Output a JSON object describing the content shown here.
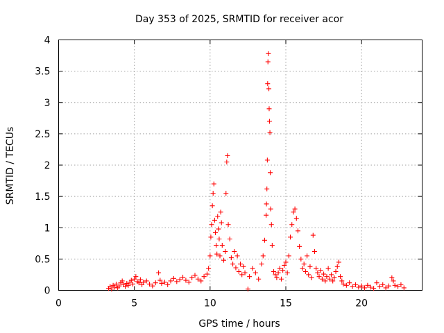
{
  "chart_data": {
    "type": "scatter",
    "title": "Day 353 of 2025, SRMTID for receiver acor",
    "xlabel": "GPS time / hours",
    "ylabel": "SRMTID / TECUs",
    "xlim": [
      0,
      24
    ],
    "ylim": [
      0,
      4
    ],
    "xticks": [
      "0",
      "5",
      "10",
      "15",
      "20"
    ],
    "yticks": [
      "0",
      "0.5",
      "1",
      "1.5",
      "2",
      "2.5",
      "3",
      "3.5",
      "4"
    ],
    "marker": "plus",
    "color": "#ff0000",
    "grid": true,
    "legend": "none",
    "series": [
      {
        "name": "SRMTID",
        "points": [
          [
            3.3,
            0.03
          ],
          [
            3.4,
            0.06
          ],
          [
            3.5,
            0.02
          ],
          [
            3.6,
            0.08
          ],
          [
            3.7,
            0.05
          ],
          [
            3.8,
            0.1
          ],
          [
            3.9,
            0.04
          ],
          [
            4.0,
            0.07
          ],
          [
            4.1,
            0.12
          ],
          [
            4.2,
            0.15
          ],
          [
            4.3,
            0.09
          ],
          [
            4.4,
            0.06
          ],
          [
            4.5,
            0.11
          ],
          [
            4.6,
            0.08
          ],
          [
            4.7,
            0.13
          ],
          [
            4.8,
            0.16
          ],
          [
            4.9,
            0.1
          ],
          [
            5.0,
            0.18
          ],
          [
            5.1,
            0.22
          ],
          [
            5.2,
            0.14
          ],
          [
            5.3,
            0.12
          ],
          [
            5.4,
            0.17
          ],
          [
            5.5,
            0.09
          ],
          [
            5.6,
            0.13
          ],
          [
            5.8,
            0.15
          ],
          [
            6.0,
            0.1
          ],
          [
            6.2,
            0.07
          ],
          [
            6.4,
            0.12
          ],
          [
            6.6,
            0.28
          ],
          [
            6.7,
            0.16
          ],
          [
            6.8,
            0.11
          ],
          [
            7.0,
            0.13
          ],
          [
            7.2,
            0.09
          ],
          [
            7.4,
            0.15
          ],
          [
            7.6,
            0.19
          ],
          [
            7.8,
            0.14
          ],
          [
            8.0,
            0.17
          ],
          [
            8.2,
            0.21
          ],
          [
            8.4,
            0.16
          ],
          [
            8.6,
            0.13
          ],
          [
            8.8,
            0.2
          ],
          [
            9.0,
            0.24
          ],
          [
            9.2,
            0.18
          ],
          [
            9.4,
            0.15
          ],
          [
            9.6,
            0.22
          ],
          [
            9.8,
            0.26
          ],
          [
            9.9,
            0.35
          ],
          [
            10.0,
            0.55
          ],
          [
            10.05,
            0.85
          ],
          [
            10.1,
            1.05
          ],
          [
            10.15,
            1.35
          ],
          [
            10.2,
            1.55
          ],
          [
            10.25,
            1.7
          ],
          [
            10.3,
            1.12
          ],
          [
            10.35,
            0.92
          ],
          [
            10.4,
            0.72
          ],
          [
            10.45,
            0.58
          ],
          [
            10.5,
            1.18
          ],
          [
            10.55,
            0.98
          ],
          [
            10.6,
            0.82
          ],
          [
            10.65,
            0.55
          ],
          [
            10.7,
            1.25
          ],
          [
            10.75,
            1.08
          ],
          [
            10.8,
            0.72
          ],
          [
            10.9,
            0.48
          ],
          [
            11.0,
            0.62
          ],
          [
            11.05,
            1.55
          ],
          [
            11.1,
            2.05
          ],
          [
            11.15,
            2.15
          ],
          [
            11.2,
            1.05
          ],
          [
            11.3,
            0.82
          ],
          [
            11.4,
            0.52
          ],
          [
            11.5,
            0.42
          ],
          [
            11.6,
            0.62
          ],
          [
            11.7,
            0.36
          ],
          [
            11.8,
            0.55
          ],
          [
            11.9,
            0.3
          ],
          [
            12.0,
            0.42
          ],
          [
            12.1,
            0.25
          ],
          [
            12.2,
            0.38
          ],
          [
            12.3,
            0.28
          ],
          [
            12.5,
            0.02
          ],
          [
            12.6,
            0.22
          ],
          [
            12.8,
            0.35
          ],
          [
            13.0,
            0.28
          ],
          [
            13.2,
            0.18
          ],
          [
            13.4,
            0.42
          ],
          [
            13.5,
            0.55
          ],
          [
            13.6,
            0.8
          ],
          [
            13.7,
            1.2
          ],
          [
            13.72,
            1.38
          ],
          [
            13.75,
            1.62
          ],
          [
            13.78,
            2.08
          ],
          [
            13.8,
            3.3
          ],
          [
            13.82,
            3.65
          ],
          [
            13.85,
            3.78
          ],
          [
            13.88,
            3.22
          ],
          [
            13.9,
            2.9
          ],
          [
            13.92,
            2.7
          ],
          [
            13.95,
            2.52
          ],
          [
            13.97,
            1.88
          ],
          [
            14.0,
            1.3
          ],
          [
            14.05,
            1.05
          ],
          [
            14.1,
            0.72
          ],
          [
            14.2,
            0.3
          ],
          [
            14.3,
            0.25
          ],
          [
            14.4,
            0.2
          ],
          [
            14.5,
            0.28
          ],
          [
            14.6,
            0.35
          ],
          [
            14.7,
            0.18
          ],
          [
            14.8,
            0.32
          ],
          [
            14.9,
            0.4
          ],
          [
            15.0,
            0.45
          ],
          [
            15.1,
            0.28
          ],
          [
            15.2,
            0.55
          ],
          [
            15.3,
            0.85
          ],
          [
            15.4,
            1.05
          ],
          [
            15.5,
            1.25
          ],
          [
            15.6,
            1.3
          ],
          [
            15.7,
            1.15
          ],
          [
            15.8,
            0.95
          ],
          [
            15.9,
            0.7
          ],
          [
            16.0,
            0.5
          ],
          [
            16.1,
            0.35
          ],
          [
            16.2,
            0.42
          ],
          [
            16.3,
            0.3
          ],
          [
            16.4,
            0.55
          ],
          [
            16.5,
            0.25
          ],
          [
            16.6,
            0.38
          ],
          [
            16.7,
            0.2
          ],
          [
            16.8,
            0.88
          ],
          [
            16.9,
            0.62
          ],
          [
            17.0,
            0.35
          ],
          [
            17.1,
            0.28
          ],
          [
            17.2,
            0.22
          ],
          [
            17.3,
            0.32
          ],
          [
            17.4,
            0.18
          ],
          [
            17.5,
            0.26
          ],
          [
            17.6,
            0.15
          ],
          [
            17.7,
            0.22
          ],
          [
            17.8,
            0.35
          ],
          [
            17.9,
            0.18
          ],
          [
            18.0,
            0.25
          ],
          [
            18.1,
            0.15
          ],
          [
            18.2,
            0.2
          ],
          [
            18.3,
            0.3
          ],
          [
            18.4,
            0.38
          ],
          [
            18.5,
            0.45
          ],
          [
            18.6,
            0.22
          ],
          [
            18.7,
            0.15
          ],
          [
            18.8,
            0.1
          ],
          [
            19.0,
            0.08
          ],
          [
            19.2,
            0.12
          ],
          [
            19.4,
            0.06
          ],
          [
            19.6,
            0.09
          ],
          [
            19.8,
            0.05
          ],
          [
            20.0,
            0.07
          ],
          [
            20.2,
            0.04
          ],
          [
            20.4,
            0.08
          ],
          [
            20.6,
            0.05
          ],
          [
            20.8,
            0.03
          ],
          [
            21.0,
            0.12
          ],
          [
            21.2,
            0.06
          ],
          [
            21.4,
            0.09
          ],
          [
            21.6,
            0.04
          ],
          [
            21.8,
            0.07
          ],
          [
            22.0,
            0.2
          ],
          [
            22.1,
            0.15
          ],
          [
            22.2,
            0.08
          ],
          [
            22.4,
            0.06
          ],
          [
            22.6,
            0.09
          ],
          [
            22.8,
            0.04
          ]
        ]
      }
    ]
  }
}
